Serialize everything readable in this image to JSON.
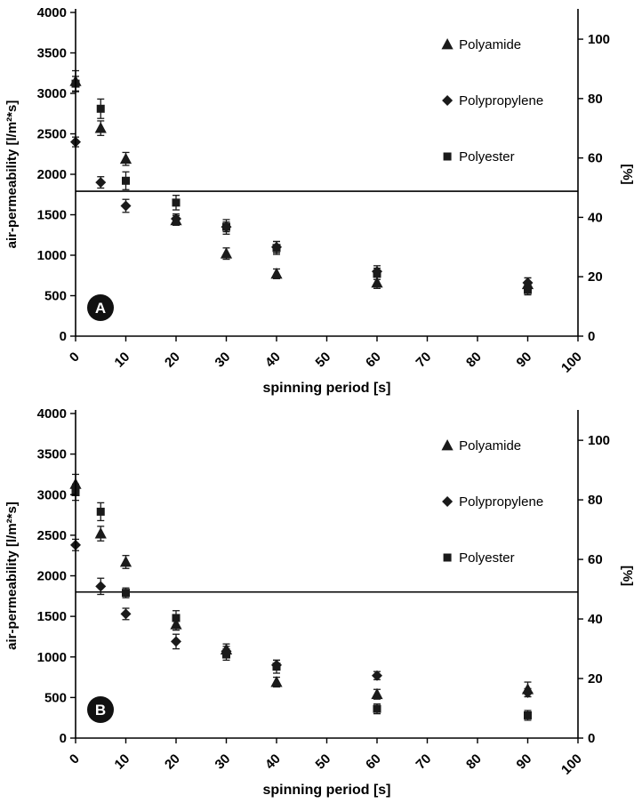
{
  "page": {
    "background": "#ffffff"
  },
  "colors": {
    "marker": "#1a1a1a",
    "axis": "#000000",
    "reference_line": "#000000",
    "badge_bg": "#111111",
    "badge_text": "#ffffff"
  },
  "chart_data": [
    {
      "type": "scatter",
      "badge": "A",
      "title": "",
      "xlabel": "spinning period [s]",
      "ylabel": "air-permeability [l/m²*s]",
      "right_ylabel": "[%]",
      "xlim": [
        0,
        100
      ],
      "ylim": [
        0,
        4000
      ],
      "right_ylim": [
        0,
        109
      ],
      "x_ticks": [
        0,
        10,
        20,
        30,
        40,
        50,
        60,
        70,
        80,
        90,
        100
      ],
      "y_ticks": [
        0,
        500,
        1000,
        1500,
        2000,
        2500,
        3000,
        3500,
        4000
      ],
      "right_y_ticks": [
        0,
        20,
        40,
        60,
        80,
        100
      ],
      "grid": false,
      "reference_line_y": 1790,
      "legend_position": "upper-right-inside",
      "legend": [
        {
          "label": "Polyamide",
          "marker": "triangle"
        },
        {
          "label": "Polypropylene",
          "marker": "diamond"
        },
        {
          "label": "Polyester",
          "marker": "square"
        }
      ],
      "series": [
        {
          "name": "Polyamide",
          "marker": "triangle",
          "points": [
            {
              "x": 0,
              "y": 3150,
              "e": 130
            },
            {
              "x": 5,
              "y": 2570,
              "e": 90
            },
            {
              "x": 10,
              "y": 2190,
              "e": 80
            },
            {
              "x": 20,
              "y": 1430,
              "e": 60
            },
            {
              "x": 30,
              "y": 1020,
              "e": 70
            },
            {
              "x": 40,
              "y": 770,
              "e": 60
            },
            {
              "x": 60,
              "y": 660,
              "e": 70
            },
            {
              "x": 90,
              "y": 640,
              "e": 80
            }
          ]
        },
        {
          "name": "Polypropylene",
          "marker": "diamond",
          "points": [
            {
              "x": 0,
              "y": 2400,
              "e": 60
            },
            {
              "x": 5,
              "y": 1900,
              "e": 70
            },
            {
              "x": 10,
              "y": 1610,
              "e": 80
            },
            {
              "x": 20,
              "y": 1450,
              "e": 60
            },
            {
              "x": 30,
              "y": 1350,
              "e": 60
            },
            {
              "x": 40,
              "y": 1100,
              "e": 70
            },
            {
              "x": 60,
              "y": 800,
              "e": 70
            },
            {
              "x": 90,
              "y": 660,
              "e": 60
            }
          ]
        },
        {
          "name": "Polyester",
          "marker": "square",
          "points": [
            {
              "x": 0,
              "y": 3120,
              "e": 90
            },
            {
              "x": 5,
              "y": 2810,
              "e": 120
            },
            {
              "x": 10,
              "y": 1920,
              "e": 110
            },
            {
              "x": 20,
              "y": 1650,
              "e": 90
            },
            {
              "x": 30,
              "y": 1350,
              "e": 90
            },
            {
              "x": 40,
              "y": 1090,
              "e": 80
            },
            {
              "x": 60,
              "y": 770,
              "e": 70
            },
            {
              "x": 90,
              "y": 570,
              "e": 60
            }
          ]
        }
      ]
    },
    {
      "type": "scatter",
      "badge": "B",
      "title": "",
      "xlabel": "spinning period [s]",
      "ylabel": "air-permeability [l/m²*s]",
      "right_ylabel": "[%]",
      "xlim": [
        0,
        100
      ],
      "ylim": [
        0,
        4000
      ],
      "right_ylim": [
        0,
        109
      ],
      "x_ticks": [
        0,
        10,
        20,
        30,
        40,
        50,
        60,
        70,
        80,
        90,
        100
      ],
      "y_ticks": [
        0,
        500,
        1000,
        1500,
        2000,
        2500,
        3000,
        3500,
        4000
      ],
      "right_y_ticks": [
        0,
        20,
        40,
        60,
        80,
        100
      ],
      "grid": false,
      "reference_line_y": 1800,
      "legend_position": "upper-right-inside",
      "legend": [
        {
          "label": "Polyamide",
          "marker": "triangle"
        },
        {
          "label": "Polypropylene",
          "marker": "diamond"
        },
        {
          "label": "Polyester",
          "marker": "square"
        }
      ],
      "series": [
        {
          "name": "Polyamide",
          "marker": "triangle",
          "points": [
            {
              "x": 0,
              "y": 3130,
              "e": 120
            },
            {
              "x": 5,
              "y": 2520,
              "e": 90
            },
            {
              "x": 10,
              "y": 2170,
              "e": 80
            },
            {
              "x": 20,
              "y": 1400,
              "e": 70
            },
            {
              "x": 30,
              "y": 1090,
              "e": 70
            },
            {
              "x": 40,
              "y": 690,
              "e": 60
            },
            {
              "x": 60,
              "y": 540,
              "e": 60
            },
            {
              "x": 90,
              "y": 600,
              "e": 90
            }
          ]
        },
        {
          "name": "Polypropylene",
          "marker": "diamond",
          "points": [
            {
              "x": 0,
              "y": 2380,
              "e": 70
            },
            {
              "x": 5,
              "y": 1870,
              "e": 100
            },
            {
              "x": 10,
              "y": 1530,
              "e": 70
            },
            {
              "x": 20,
              "y": 1190,
              "e": 90
            },
            {
              "x": 30,
              "y": 1070,
              "e": 60
            },
            {
              "x": 40,
              "y": 900,
              "e": 60
            },
            {
              "x": 60,
              "y": 770,
              "e": 50
            },
            {
              "x": 90,
              "y": 560,
              "e": 50
            }
          ]
        },
        {
          "name": "Polyester",
          "marker": "square",
          "points": [
            {
              "x": 0,
              "y": 3030,
              "e": 100
            },
            {
              "x": 5,
              "y": 2790,
              "e": 110
            },
            {
              "x": 10,
              "y": 1790,
              "e": 60
            },
            {
              "x": 20,
              "y": 1480,
              "e": 90
            },
            {
              "x": 30,
              "y": 1030,
              "e": 70
            },
            {
              "x": 40,
              "y": 880,
              "e": 80
            },
            {
              "x": 60,
              "y": 360,
              "e": 60
            },
            {
              "x": 90,
              "y": 280,
              "e": 60
            }
          ]
        }
      ]
    }
  ]
}
